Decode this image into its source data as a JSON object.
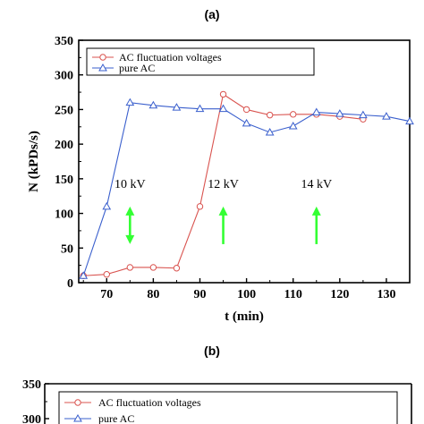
{
  "chart_data": [
    {
      "panel": "(a)",
      "type": "line",
      "xlabel": "t (min)",
      "ylabel": "N (kPDs/s)",
      "xlim": [
        64,
        135
      ],
      "ylim": [
        0,
        350
      ],
      "xticks": [
        70,
        80,
        90,
        100,
        110,
        120,
        130
      ],
      "yticks": [
        0,
        50,
        100,
        150,
        200,
        250,
        300,
        350
      ],
      "legend_position": "top",
      "series": [
        {
          "name": "AC fluctuation voltages",
          "marker": "circle",
          "color": "#d9534f",
          "x": [
            65,
            70,
            75,
            80,
            85,
            90,
            95,
            100,
            105,
            110,
            115,
            120,
            125
          ],
          "y": [
            10,
            12,
            22,
            22,
            21,
            110,
            272,
            250,
            242,
            243,
            243,
            240,
            236
          ]
        },
        {
          "name": "pure AC",
          "marker": "triangle",
          "color": "#3a5fcd",
          "x": [
            65,
            70,
            75,
            80,
            85,
            90,
            95,
            100,
            105,
            110,
            115,
            120,
            125,
            130,
            135
          ],
          "y": [
            10,
            110,
            260,
            256,
            253,
            251,
            251,
            230,
            217,
            226,
            246,
            244,
            242,
            240,
            233
          ]
        }
      ],
      "annotations": [
        {
          "text": "10 kV",
          "x": 75,
          "y": 137,
          "arrow": "double",
          "color": "#33ff33"
        },
        {
          "text": "12 kV",
          "x": 95,
          "y": 137,
          "arrow": "up",
          "color": "#33ff33"
        },
        {
          "text": "14 kV",
          "x": 115,
          "y": 137,
          "arrow": "up",
          "color": "#33ff33"
        }
      ]
    },
    {
      "panel": "(b)",
      "type": "line",
      "ylim": [
        0,
        350
      ],
      "yticks": [
        300,
        350
      ],
      "legend_position": "top",
      "series": [
        {
          "name": "AC fluctuation voltages",
          "marker": "circle",
          "color": "#d9534f"
        },
        {
          "name": "pure AC",
          "marker": "triangle",
          "color": "#3a5fcd"
        }
      ]
    }
  ]
}
